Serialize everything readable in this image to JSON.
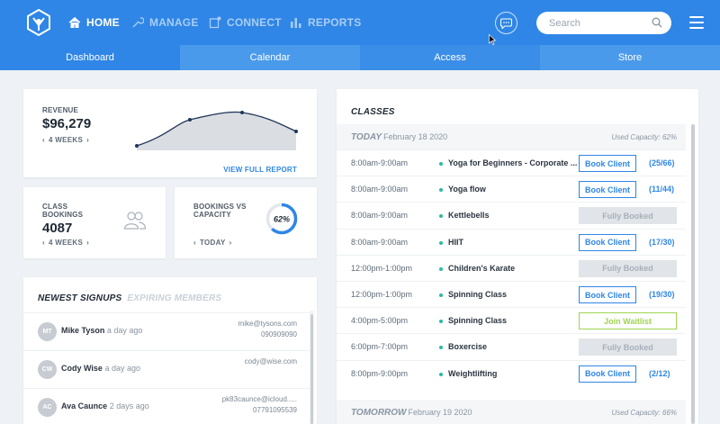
{
  "nav": {
    "items": [
      {
        "label": "HOME",
        "icon": "home-icon"
      },
      {
        "label": "MANAGE",
        "icon": "wrench-icon"
      },
      {
        "label": "CONNECT",
        "icon": "connect-icon"
      },
      {
        "label": "REPORTS",
        "icon": "bar-chart-icon"
      }
    ],
    "search_placeholder": "Search",
    "accent": "#2f86e6"
  },
  "tabs": [
    "Dashboard",
    "Calendar",
    "Access",
    "Store"
  ],
  "revenue": {
    "label": "REVENUE",
    "value": "$96,279",
    "period": "4 WEEKS",
    "link": "VIEW FULL REPORT"
  },
  "class_bookings": {
    "label_line1": "CLASS",
    "label_line2": "BOOKINGS",
    "value": "4087",
    "period": "4 WEEKS"
  },
  "bookings_vs_capacity": {
    "label_line1": "BOOKINGS VS",
    "label_line2": "CAPACITY",
    "percent": "62%",
    "fraction": 0.62,
    "period": "TODAY"
  },
  "signups": {
    "tab_active": "NEWEST SIGNUPS",
    "tab_inactive": "EXPIRING MEMBERS",
    "rows": [
      {
        "initials": "MT",
        "name": "Mike Tyson",
        "time": "a day ago",
        "email": "mike@tysons.com",
        "phone": "090909090"
      },
      {
        "initials": "CW",
        "name": "Cody Wise",
        "time": "a day ago",
        "email": "cody@wise.com",
        "phone": ""
      },
      {
        "initials": "AC",
        "name": "Ava Caunce",
        "time": "2 days ago",
        "email": "pk83caunce@icloud.....",
        "phone": "07791095539"
      }
    ]
  },
  "classes": {
    "title": "CLASSES",
    "today": {
      "label": "TODAY",
      "date": "February 18 2020",
      "capacity": "Used Capacity: 62%"
    },
    "tomorrow": {
      "label": "TOMORROW",
      "date": "February 19 2020",
      "capacity": "Used Capacity: 66%"
    },
    "rows": [
      {
        "time": "8:00am-9:00am",
        "name": "Yoga for Beginners - Corporate ...",
        "action": "Book Client",
        "type": "book",
        "count": "(25/66)"
      },
      {
        "time": "8:00am-9:00am",
        "name": "Yoga flow",
        "action": "Book Client",
        "type": "book",
        "count": "(11/44)"
      },
      {
        "time": "8:00am-9:00am",
        "name": "Kettlebells",
        "action": "Fully Booked",
        "type": "full",
        "count": ""
      },
      {
        "time": "8:00am-9:00am",
        "name": "HIIT",
        "action": "Book Client",
        "type": "book",
        "count": "(17/30)"
      },
      {
        "time": "12:00pm-1:00pm",
        "name": "Children's Karate",
        "action": "Fully Booked",
        "type": "full",
        "count": ""
      },
      {
        "time": "12:00pm-1:00pm",
        "name": "Spinning Class",
        "action": "Book Client",
        "type": "book",
        "count": "(19/30)"
      },
      {
        "time": "4:00pm-5:00pm",
        "name": "Spinning Class",
        "action": "Join Waitlist",
        "type": "wait",
        "count": ""
      },
      {
        "time": "6:00pm-7:00pm",
        "name": "Boxercise",
        "action": "Fully Booked",
        "type": "full",
        "count": ""
      },
      {
        "time": "8:00pm-9:00pm",
        "name": "Weightlifting",
        "action": "Book Client",
        "type": "book",
        "count": "(2/12)"
      }
    ]
  }
}
